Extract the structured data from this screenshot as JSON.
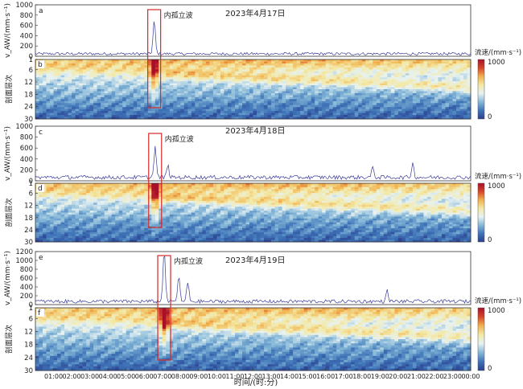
{
  "colors": {
    "line": "#3a3a9a",
    "annotation_box": "#d62828",
    "colormap": [
      "#2b3f8f",
      "#3f74b8",
      "#86b8d8",
      "#e7f2f3",
      "#f3e9a6",
      "#f2b24e",
      "#d8452a",
      "#a8102a"
    ]
  },
  "labels": {
    "y_top": "v_AW/(mm·s⁻¹)",
    "y_bottom": "剖面层次",
    "cbar_label": "流速/(mm·s⁻¹)",
    "x_label": "时间/(时:分)",
    "annotation": "内孤立波"
  },
  "chart_data": {
    "type": "heatmap",
    "x_ticks": [
      "01:00",
      "02:00",
      "03:00",
      "04:00",
      "05:00",
      "06:00",
      "07:00",
      "08:00",
      "09:00",
      "10:00",
      "11:00",
      "12:00",
      "13:00",
      "14:00",
      "15:00",
      "16:00",
      "17:00",
      "18:00",
      "19:00",
      "20:00",
      "21:00",
      "22:00",
      "23:00",
      "00:00"
    ],
    "x_range": [
      "00:00",
      "24:00"
    ],
    "panels": [
      {
        "date": "2023年4月17日",
        "line_panel": {
          "letter": "a",
          "ylim": [
            0,
            1000
          ],
          "y_ticks": [
            0,
            200,
            400,
            600,
            800,
            1000
          ],
          "baseline": 60,
          "peaks": [
            {
              "time_h": 6.55,
              "value": 640
            }
          ]
        },
        "heat_panel": {
          "letter": "b",
          "y_ticks": [
            1,
            6,
            12,
            18,
            24,
            30
          ],
          "clim": [
            0,
            1000
          ],
          "cbar_ticks": [
            0,
            1000
          ]
        },
        "annotation_time_h": 6.55
      },
      {
        "date": "2023年4月18日",
        "line_panel": {
          "letter": "c",
          "ylim": [
            0,
            1000
          ],
          "y_ticks": [
            0,
            200,
            400,
            600,
            800,
            1000
          ],
          "baseline": 80,
          "peaks": [
            {
              "time_h": 6.6,
              "value": 560
            },
            {
              "time_h": 7.3,
              "value": 220
            },
            {
              "time_h": 18.6,
              "value": 180
            },
            {
              "time_h": 20.8,
              "value": 260
            }
          ]
        },
        "heat_panel": {
          "letter": "d",
          "y_ticks": [
            1,
            6,
            12,
            18,
            24,
            30
          ],
          "clim": [
            0,
            1000
          ],
          "cbar_ticks": [
            0,
            1000
          ]
        },
        "annotation_time_h": 6.6
      },
      {
        "date": "2023年4月19日",
        "line_panel": {
          "letter": "e",
          "ylim": [
            0,
            1200
          ],
          "y_ticks": [
            0,
            200,
            400,
            600,
            800,
            1000,
            1200
          ],
          "baseline": 90,
          "peaks": [
            {
              "time_h": 7.1,
              "value": 1180
            },
            {
              "time_h": 7.9,
              "value": 560
            },
            {
              "time_h": 8.4,
              "value": 420
            },
            {
              "time_h": 19.4,
              "value": 240
            }
          ]
        },
        "heat_panel": {
          "letter": "f",
          "y_ticks": [
            1,
            6,
            12,
            18,
            24,
            30
          ],
          "clim": [
            0,
            1000
          ],
          "cbar_ticks": [
            0,
            1000
          ]
        },
        "annotation_time_h": 7.1
      }
    ]
  }
}
